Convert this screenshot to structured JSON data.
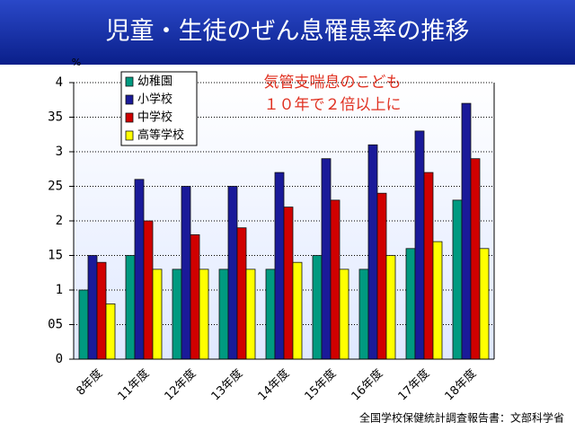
{
  "chart_data": {
    "type": "bar",
    "title": "児童・生徒のぜん息罹患率の推移",
    "ylabel": "%",
    "annotation": [
      "気管支喘息のこども",
      "１０年で２倍以上に"
    ],
    "source": "全国学校保健統計調査報告書：文部科学省",
    "categories": [
      "8年度",
      "11年度",
      "12年度",
      "13年度",
      "14年度",
      "15年度",
      "16年度",
      "17年度",
      "18年度"
    ],
    "series": [
      {
        "name": "幼稚園",
        "color": "#009a80",
        "values": [
          1.0,
          1.5,
          1.3,
          1.3,
          1.3,
          1.5,
          1.3,
          1.6,
          2.3
        ]
      },
      {
        "name": "小学校",
        "color": "#1a1a99",
        "values": [
          1.5,
          2.6,
          2.5,
          2.5,
          2.7,
          2.9,
          3.1,
          3.3,
          3.7
        ]
      },
      {
        "name": "中学校",
        "color": "#d00000",
        "values": [
          1.4,
          2.0,
          1.8,
          1.9,
          2.2,
          2.3,
          2.4,
          2.7,
          2.9
        ]
      },
      {
        "name": "高等学校",
        "color": "#ffff00",
        "values": [
          0.8,
          1.3,
          1.3,
          1.3,
          1.4,
          1.3,
          1.5,
          1.7,
          1.6
        ]
      }
    ],
    "ylim": [
      0,
      4
    ],
    "yticks": [
      0,
      {
        "value": 0.5,
        "label": "05"
      },
      1,
      {
        "value": 1.5,
        "label": "15"
      },
      2,
      {
        "value": 2.5,
        "label": "25"
      },
      3,
      {
        "value": 3.5,
        "label": "35"
      },
      4
    ],
    "grid": true,
    "legend": "upper-left"
  }
}
